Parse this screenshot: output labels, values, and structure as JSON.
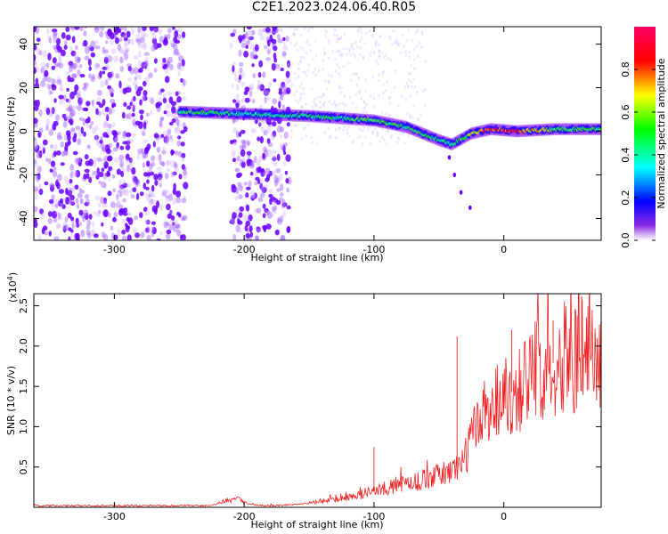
{
  "title": "C2E1.2023.024.06.40.R05",
  "chart_data": [
    {
      "type": "heatmap",
      "xlabel": "Height of straight line (km)",
      "ylabel": "Frequency (Hz)",
      "xlim": [
        -362,
        75
      ],
      "ylim": [
        -50,
        48
      ],
      "xticks": [
        -300,
        -200,
        -100,
        0
      ],
      "yticks": [
        -40,
        -20,
        0,
        20,
        40
      ],
      "colorbar": {
        "label": "Normalized spectral amplitude",
        "ticks": [
          "0.0",
          "0.2",
          "0.4",
          "0.6",
          "0.8"
        ],
        "tick_values": [
          0.0,
          0.2,
          0.4,
          0.6,
          0.8
        ],
        "range": [
          0,
          1
        ],
        "colormap": [
          "#ffffff",
          "#7b00ff",
          "#0000ff",
          "#00ffff",
          "#00ff00",
          "#ffff00",
          "#ff0000",
          "#ff0066"
        ]
      },
      "noise_regions_km": [
        [
          -362,
          -245
        ],
        [
          -210,
          -165
        ]
      ],
      "ridge": {
        "x_km": [
          -250,
          -200,
          -150,
          -100,
          -75,
          -50,
          -40,
          -25,
          -10,
          10,
          40,
          75
        ],
        "frequency_hz": [
          9,
          8,
          7,
          5,
          2,
          -4,
          -6,
          -1,
          1,
          0,
          1,
          1
        ],
        "amplitude": [
          0.5,
          0.4,
          0.45,
          0.5,
          0.45,
          0.45,
          0.4,
          0.6,
          0.85,
          0.85,
          0.5,
          0.45
        ]
      }
    },
    {
      "type": "line",
      "xlabel": "Height of straight line (km)",
      "ylabel": "SNR (10 * v/v)",
      "y_multiplier": "(x10",
      "y_multiplier_exp": "4",
      "y_multiplier_close": ")",
      "xlim": [
        -362,
        75
      ],
      "ylim": [
        0,
        2.65
      ],
      "xticks": [
        -300,
        -200,
        -100,
        0
      ],
      "yticks": [
        0.5,
        1.0,
        1.5,
        2.0,
        2.5
      ],
      "series_color": "#ee2222",
      "trend": {
        "x_km": [
          -362,
          -225,
          -215,
          -205,
          -195,
          -175,
          -150,
          -120,
          -100,
          -80,
          -60,
          -40,
          -30,
          -22,
          -15,
          -5,
          0,
          10,
          20,
          30,
          40,
          50,
          60,
          75
        ],
        "snr_x1e4": [
          0.02,
          0.02,
          0.08,
          0.1,
          0.03,
          0.02,
          0.05,
          0.12,
          0.2,
          0.28,
          0.35,
          0.45,
          0.6,
          1.0,
          1.2,
          1.35,
          1.4,
          1.45,
          1.62,
          1.75,
          1.8,
          1.85,
          1.88,
          1.82
        ]
      },
      "peaks": [
        {
          "x_km": -100,
          "snr_x1e4": 0.75
        },
        {
          "x_km": -36,
          "snr_x1e4": 2.12
        },
        {
          "x_km": 6,
          "snr_x1e4": 2.2
        },
        {
          "x_km": 38,
          "snr_x1e4": 2.32
        },
        {
          "x_km": 60,
          "snr_x1e4": 2.62
        }
      ]
    }
  ]
}
